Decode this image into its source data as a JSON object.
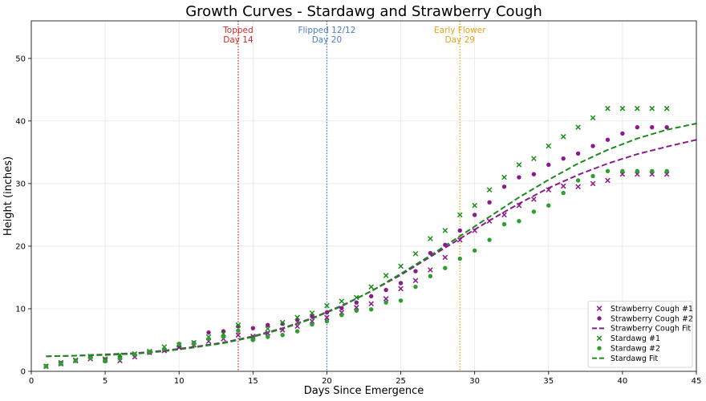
{
  "chart_data": {
    "type": "scatter",
    "title": "Growth Curves - Stardawg and Strawberry Cough",
    "xlabel": "Days Since Emergence",
    "ylabel": "Height (inches)",
    "xlim": [
      0,
      45
    ],
    "ylim": [
      0,
      56
    ],
    "xticks": [
      0,
      5,
      10,
      15,
      20,
      25,
      30,
      35,
      40,
      45
    ],
    "yticks": [
      0,
      10,
      20,
      30,
      40,
      50
    ],
    "grid": true,
    "legend_position": "bottom-right",
    "annotations": [
      {
        "x": 14,
        "line1": "Topped",
        "line2": "Day 14",
        "color": "#d62728"
      },
      {
        "x": 20,
        "line1": "Flipped 12/12",
        "line2": "Day 20",
        "color": "#4a7ec7"
      },
      {
        "x": 29,
        "line1": "Early Flower",
        "line2": "Day 29",
        "color": "#e8a317"
      }
    ],
    "series": [
      {
        "name": "Strawberry Cough #1",
        "kind": "scatter",
        "marker": "x",
        "color": "#8b1a8b",
        "x": [
          1,
          2,
          3,
          4,
          5,
          6,
          7,
          8,
          9,
          10,
          11,
          12,
          13,
          14,
          15,
          16,
          17,
          18,
          19,
          20,
          21,
          22,
          23,
          24,
          25,
          26,
          27,
          28,
          29,
          30,
          31,
          32,
          33,
          34,
          35,
          36,
          37,
          38,
          39,
          40,
          41,
          42,
          43
        ],
        "y": [
          0.8,
          1.2,
          1.7,
          2.0,
          1.8,
          1.7,
          2.3,
          3.0,
          3.3,
          3.8,
          4.2,
          4.8,
          5.2,
          5.8,
          5.6,
          6.1,
          6.6,
          7.2,
          8.0,
          8.6,
          9.4,
          10.2,
          10.8,
          11.6,
          13.2,
          14.5,
          16.2,
          18.2,
          21.0,
          22.5,
          24.0,
          25.0,
          26.5,
          27.5,
          29.0,
          29.6,
          29.5,
          30.0,
          30.5,
          31.5,
          31.5,
          31.5,
          31.5
        ]
      },
      {
        "name": "Strawberry Cough #2",
        "kind": "scatter",
        "marker": "circle",
        "color": "#8b1a8b",
        "x": [
          1,
          2,
          3,
          4,
          5,
          6,
          7,
          8,
          9,
          10,
          11,
          12,
          13,
          14,
          15,
          16,
          17,
          18,
          19,
          20,
          21,
          22,
          23,
          24,
          25,
          26,
          27,
          28,
          29,
          30,
          31,
          32,
          33,
          34,
          35,
          36,
          37,
          38,
          39,
          40,
          41,
          42,
          43
        ],
        "y": [
          0.8,
          1.3,
          1.7,
          2.2,
          1.9,
          2.3,
          2.6,
          3.0,
          3.4,
          4.0,
          4.5,
          6.2,
          6.4,
          7.2,
          6.9,
          7.4,
          7.6,
          8.2,
          8.8,
          9.4,
          10.1,
          11.0,
          12.0,
          13.0,
          14.1,
          16.0,
          18.9,
          20.2,
          22.5,
          25.0,
          27.0,
          29.5,
          31.0,
          31.5,
          33.0,
          34.0,
          34.8,
          36.0,
          37.0,
          38.0,
          39.0,
          39.0,
          39.0
        ]
      },
      {
        "name": "Strawberry Cough Fit",
        "kind": "line",
        "dash": "dashed",
        "color": "#8b1a8b",
        "x": [
          1,
          3,
          5,
          7,
          9,
          11,
          13,
          15,
          17,
          19,
          21,
          23,
          25,
          27,
          29,
          31,
          33,
          35,
          37,
          39,
          41,
          43,
          45
        ],
        "y": [
          2.4,
          2.5,
          2.7,
          2.9,
          3.3,
          3.9,
          4.6,
          5.6,
          6.9,
          8.5,
          10.5,
          12.8,
          15.4,
          18.3,
          21.2,
          24.1,
          26.8,
          29.3,
          31.4,
          33.2,
          34.7,
          35.9,
          37.0
        ]
      },
      {
        "name": "Stardawg #1",
        "kind": "scatter",
        "marker": "x",
        "color": "#1a8c1a",
        "x": [
          1,
          2,
          3,
          4,
          5,
          6,
          7,
          8,
          9,
          10,
          11,
          12,
          13,
          14,
          15,
          16,
          17,
          18,
          19,
          20,
          21,
          22,
          23,
          24,
          25,
          26,
          27,
          28,
          29,
          30,
          31,
          32,
          33,
          34,
          35,
          36,
          37,
          38,
          39,
          40,
          41,
          42,
          43
        ],
        "y": [
          0.8,
          1.4,
          1.8,
          2.4,
          2.0,
          2.6,
          2.8,
          3.2,
          3.9,
          4.2,
          4.6,
          5.5,
          6.0,
          7.4,
          5.3,
          6.8,
          7.8,
          8.6,
          9.3,
          10.5,
          11.2,
          11.8,
          13.5,
          15.3,
          16.8,
          18.8,
          21.2,
          22.5,
          25.0,
          26.5,
          29.0,
          31.0,
          33.0,
          34.0,
          36.0,
          37.5,
          39.0,
          40.5,
          42.0,
          42.0,
          42.0,
          42.0,
          42.0
        ]
      },
      {
        "name": "Stardawg #2",
        "kind": "scatter",
        "marker": "circle",
        "color": "#2e9e2e",
        "x": [
          1,
          2,
          3,
          4,
          5,
          6,
          7,
          8,
          9,
          10,
          11,
          12,
          13,
          14,
          15,
          16,
          17,
          18,
          19,
          20,
          21,
          22,
          23,
          24,
          25,
          26,
          27,
          28,
          29,
          30,
          31,
          32,
          33,
          34,
          35,
          36,
          37,
          38,
          39,
          40,
          41,
          42,
          43
        ],
        "y": [
          0.8,
          1.2,
          1.7,
          2.1,
          1.6,
          2.0,
          2.7,
          3.1,
          3.6,
          4.4,
          4.4,
          5.2,
          5.5,
          6.5,
          5.0,
          5.5,
          5.8,
          6.4,
          7.5,
          8.0,
          9.0,
          9.7,
          9.9,
          11.0,
          11.3,
          13.5,
          15.2,
          16.5,
          18.0,
          19.3,
          21.0,
          23.5,
          24.0,
          25.5,
          26.5,
          28.5,
          30.5,
          31.2,
          32.0,
          32.0,
          32.0,
          32.0,
          32.0
        ]
      },
      {
        "name": "Stardawg Fit",
        "kind": "line",
        "dash": "dashed",
        "color": "#1a8c1a",
        "x": [
          1,
          3,
          5,
          7,
          9,
          11,
          13,
          15,
          17,
          19,
          21,
          23,
          25,
          27,
          29,
          31,
          33,
          35,
          37,
          39,
          41,
          43,
          45
        ],
        "y": [
          2.4,
          2.5,
          2.6,
          2.8,
          3.2,
          3.8,
          4.5,
          5.5,
          6.8,
          8.4,
          10.4,
          12.8,
          15.6,
          18.5,
          21.6,
          24.7,
          27.8,
          30.6,
          33.2,
          35.4,
          37.2,
          38.6,
          39.6
        ]
      }
    ]
  }
}
